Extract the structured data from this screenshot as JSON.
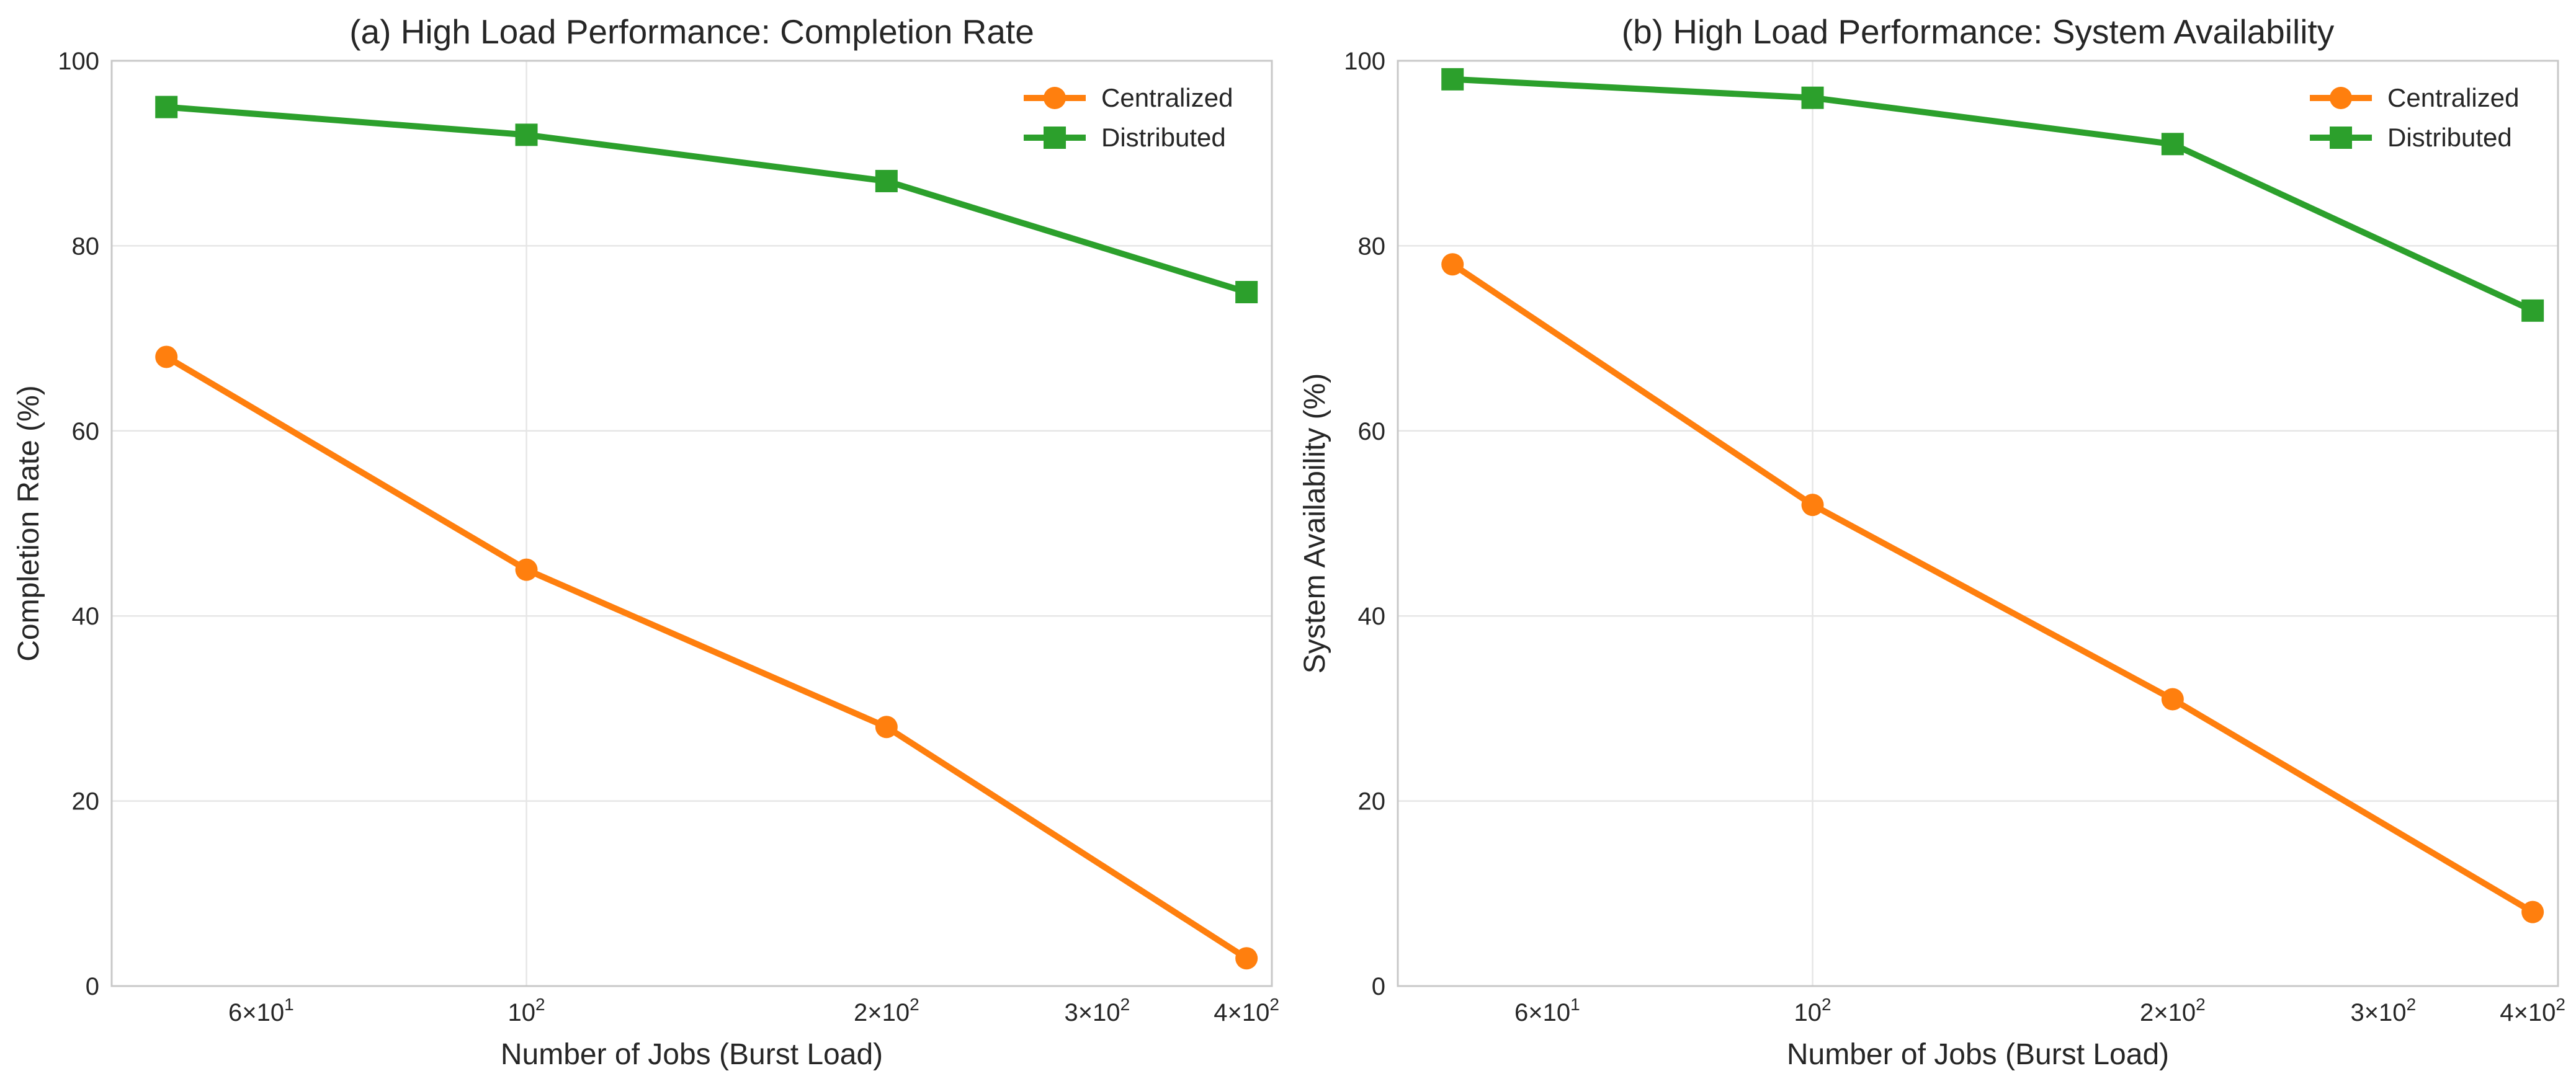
{
  "colors": {
    "centralized": "#ff7f0e",
    "distributed": "#2ca02c"
  },
  "chart_data": [
    {
      "type": "line",
      "title": "(a) High Load Performance: Completion Rate",
      "xlabel": "Number of Jobs (Burst Load)",
      "ylabel": "Completion Rate (%)",
      "xscale": "log",
      "xlim": [
        45,
        420
      ],
      "ylim": [
        0,
        100
      ],
      "yticks": [
        "0",
        "20",
        "40",
        "60",
        "80",
        "100"
      ],
      "grid": true,
      "legend_position": "top-right",
      "x": [
        50,
        100,
        200,
        400
      ],
      "series": [
        {
          "name": "Centralized",
          "marker": "circle",
          "values": [
            68,
            45,
            28,
            3
          ]
        },
        {
          "name": "Distributed",
          "marker": "square",
          "values": [
            95,
            92,
            87,
            75
          ]
        }
      ]
    },
    {
      "type": "line",
      "title": "(b) High Load Performance: System Availability",
      "xlabel": "Number of Jobs (Burst Load)",
      "ylabel": "System Availability (%)",
      "xscale": "log",
      "xlim": [
        45,
        420
      ],
      "ylim": [
        0,
        100
      ],
      "yticks": [
        "0",
        "20",
        "40",
        "60",
        "80",
        "100"
      ],
      "grid": true,
      "legend_position": "top-right",
      "x": [
        50,
        100,
        200,
        400
      ],
      "series": [
        {
          "name": "Centralized",
          "marker": "circle",
          "values": [
            78,
            52,
            31,
            8
          ]
        },
        {
          "name": "Distributed",
          "marker": "square",
          "values": [
            98,
            96,
            91,
            73
          ]
        }
      ]
    }
  ]
}
